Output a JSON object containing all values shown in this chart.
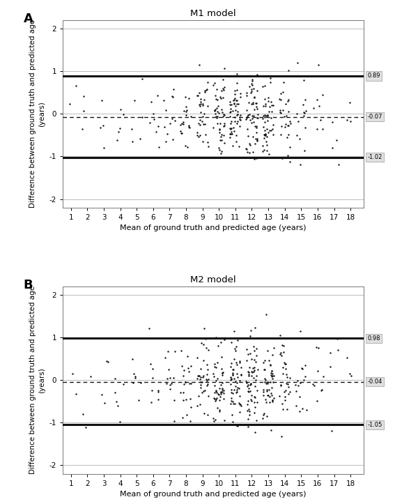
{
  "panel_A": {
    "title": "M1 model",
    "label": "A",
    "upper_loa": 0.89,
    "mean_line": -0.07,
    "lower_loa": -1.02,
    "seed": 42
  },
  "panel_B": {
    "title": "M2 model",
    "label": "B",
    "upper_loa": 0.98,
    "mean_line": -0.04,
    "lower_loa": -1.05,
    "seed": 77
  },
  "xlim": [
    0.5,
    18.8
  ],
  "ylim": [
    -2.2,
    2.2
  ],
  "xticks": [
    1,
    2,
    3,
    4,
    5,
    6,
    7,
    8,
    9,
    10,
    11,
    12,
    13,
    14,
    15,
    16,
    17,
    18
  ],
  "yticks": [
    -2,
    -1,
    0,
    1,
    2
  ],
  "xlabel": "Mean of ground truth and predicted age (years)",
  "ylabel_line1": "Difference between ground truth and predicted age",
  "ylabel_line2": "(years)",
  "background_color": "#ffffff",
  "plot_bg": "#ffffff",
  "loa_color": "#111111",
  "mean_color": "#111111",
  "scatter_color": "#111111",
  "grid_color": "#bbbbbb",
  "annot_box_facecolor": "#e0e0e0",
  "annot_box_edgecolor": "#999999",
  "scatter_marker_size": 3,
  "loa_linewidth": 2.2,
  "mean_linewidth": 1.0,
  "age_counts": [
    2,
    3,
    4,
    5,
    6,
    8,
    12,
    20,
    35,
    50,
    55,
    60,
    50,
    30,
    15,
    8,
    4,
    3
  ],
  "age_counts_B": [
    2,
    3,
    4,
    6,
    7,
    9,
    13,
    22,
    38,
    52,
    58,
    62,
    52,
    32,
    16,
    9,
    5,
    3
  ]
}
